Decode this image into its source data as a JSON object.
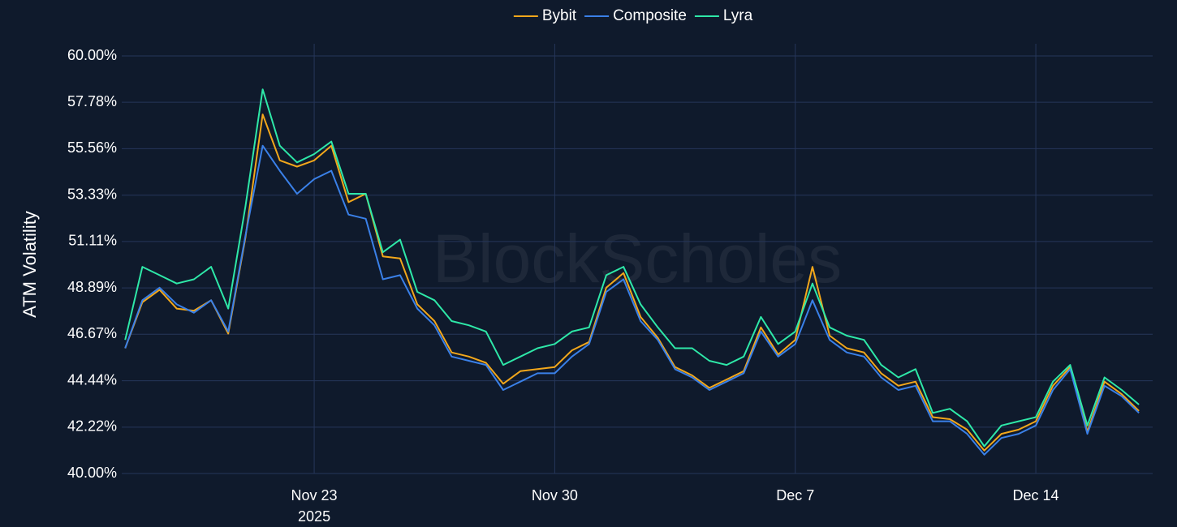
{
  "chart_data": {
    "type": "line",
    "watermark": "BlockScholes",
    "ylabel": "ATM Volatility",
    "x_year_label": "2025",
    "grid": true,
    "legend": "top",
    "xlim": [
      17.4,
      47.4
    ],
    "xticks": [
      {
        "value": 23,
        "label": "Nov 23"
      },
      {
        "value": 30,
        "label": "Nov 30"
      },
      {
        "value": 37,
        "label": "Dec 7"
      },
      {
        "value": 44,
        "label": "Dec 14"
      }
    ],
    "ylim": [
      40,
      60
    ],
    "yticks": [
      {
        "value": 40,
        "label": "40.00%"
      },
      {
        "value": 42.22,
        "label": "42.22%"
      },
      {
        "value": 44.44,
        "label": "44.44%"
      },
      {
        "value": 46.67,
        "label": "46.67%"
      },
      {
        "value": 48.89,
        "label": "48.89%"
      },
      {
        "value": 51.11,
        "label": "51.11%"
      },
      {
        "value": 53.33,
        "label": "53.33%"
      },
      {
        "value": 55.56,
        "label": "55.56%"
      },
      {
        "value": 57.78,
        "label": "57.78%"
      },
      {
        "value": 60,
        "label": "60.00%"
      }
    ],
    "x": [
      17.5,
      18,
      18.5,
      19,
      19.5,
      20,
      20.5,
      21,
      21.5,
      22,
      22.5,
      23,
      23.5,
      24,
      24.5,
      25,
      25.5,
      26,
      26.5,
      27,
      27.5,
      28,
      28.5,
      29,
      29.5,
      30,
      30.5,
      31,
      31.5,
      32,
      32.5,
      33,
      33.5,
      34,
      34.5,
      35,
      35.5,
      36,
      36.5,
      37,
      37.5,
      38,
      38.5,
      39,
      39.5,
      40,
      40.5,
      41,
      41.5,
      42,
      42.5,
      43,
      43.5,
      44,
      44.5,
      45,
      45.5,
      46,
      46.5,
      47
    ],
    "series": [
      {
        "name": "Bybit",
        "color": "#f2a71b",
        "values": [
          46.0,
          48.2,
          48.8,
          47.9,
          47.8,
          48.3,
          46.7,
          51.3,
          57.2,
          55.0,
          54.7,
          55.0,
          55.7,
          53.0,
          53.4,
          50.4,
          50.3,
          48.1,
          47.3,
          45.8,
          45.6,
          45.3,
          44.3,
          44.9,
          45.0,
          45.1,
          45.9,
          46.3,
          48.9,
          49.6,
          47.5,
          46.5,
          45.1,
          44.7,
          44.1,
          44.5,
          44.9,
          47.0,
          45.7,
          46.4,
          49.9,
          46.6,
          46.0,
          45.8,
          44.8,
          44.2,
          44.4,
          42.7,
          42.6,
          42.1,
          41.1,
          41.9,
          42.1,
          42.5,
          44.2,
          45.1,
          42.0,
          44.4,
          43.8,
          43.0
        ]
      },
      {
        "name": "Composite",
        "color": "#3a80e8",
        "values": [
          46.0,
          48.3,
          48.9,
          48.1,
          47.7,
          48.3,
          46.8,
          51.4,
          55.7,
          54.5,
          53.4,
          54.1,
          54.5,
          52.4,
          52.2,
          49.3,
          49.5,
          47.9,
          47.1,
          45.6,
          45.4,
          45.2,
          44.0,
          44.4,
          44.8,
          44.8,
          45.6,
          46.2,
          48.7,
          49.3,
          47.3,
          46.4,
          45.0,
          44.6,
          44.0,
          44.4,
          44.8,
          46.8,
          45.6,
          46.2,
          48.3,
          46.4,
          45.8,
          45.6,
          44.6,
          44.0,
          44.2,
          42.5,
          42.5,
          41.9,
          40.9,
          41.7,
          41.9,
          42.3,
          44.0,
          45.0,
          41.9,
          44.2,
          43.7,
          42.9
        ]
      },
      {
        "name": "Lyra",
        "color": "#2ee8a8",
        "values": [
          46.4,
          49.9,
          49.5,
          49.1,
          49.3,
          49.9,
          47.9,
          52.8,
          58.4,
          55.7,
          54.9,
          55.3,
          55.9,
          53.4,
          53.4,
          50.6,
          51.2,
          48.7,
          48.3,
          47.3,
          47.1,
          46.8,
          45.2,
          45.6,
          46.0,
          46.2,
          46.8,
          47.0,
          49.5,
          49.9,
          48.1,
          47.0,
          46.0,
          46.0,
          45.4,
          45.2,
          45.6,
          47.5,
          46.2,
          46.8,
          49.1,
          47.0,
          46.6,
          46.4,
          45.2,
          44.6,
          45.0,
          42.9,
          43.1,
          42.5,
          41.3,
          42.3,
          42.5,
          42.7,
          44.4,
          45.2,
          42.3,
          44.6,
          44.0,
          43.3
        ]
      }
    ]
  }
}
